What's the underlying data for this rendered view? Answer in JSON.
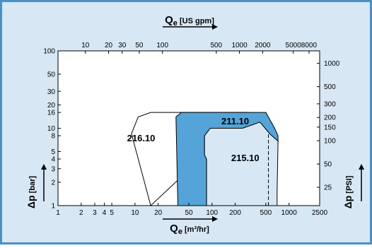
{
  "colors": {
    "panel": "#d7e7f4",
    "panel_border": "#4a90c8",
    "plot_bg": "#ffffff",
    "region_211": "#55a4d9",
    "region_215": "#d7e7f4",
    "stroke": "#000000"
  },
  "labels": {
    "top_axis_title_q": "Q",
    "top_axis_title_sub": "e",
    "top_axis_title_unit": " [US gpm]",
    "bottom_axis_title_q": "Q",
    "bottom_axis_title_sub": "e",
    "bottom_axis_title_unit": " [m³/hr]",
    "left_axis_title_sym": "Δp",
    "left_axis_title_unit": " [bar]",
    "right_axis_title_sym": "Δp",
    "right_axis_title_unit": " [PSI]"
  },
  "chart_data": {
    "type": "area",
    "x_scale": "log",
    "y_scale": "log",
    "xlim": [
      1,
      2500
    ],
    "ylim": [
      1,
      100
    ],
    "x_ticks": [
      {
        "v": 1,
        "label": "1"
      },
      {
        "v": 2,
        "label": "2"
      },
      {
        "v": 3,
        "label": "3"
      },
      {
        "v": 4,
        "label": "4"
      },
      {
        "v": 5,
        "label": "5"
      },
      {
        "v": 10,
        "label": "10"
      },
      {
        "v": 20,
        "label": "20"
      },
      {
        "v": 50,
        "label": "50"
      },
      {
        "v": 100,
        "label": "100"
      },
      {
        "v": 200,
        "label": "200"
      },
      {
        "v": 500,
        "label": "500"
      },
      {
        "v": 1000,
        "label": "1000"
      },
      {
        "v": 2500,
        "label": "2500"
      }
    ],
    "y_ticks": [
      {
        "v": 1,
        "label": "1"
      },
      {
        "v": 2,
        "label": "2"
      },
      {
        "v": 3,
        "label": "3"
      },
      {
        "v": 4,
        "label": "4"
      },
      {
        "v": 5,
        "label": "5"
      },
      {
        "v": 8,
        "label": "8"
      },
      {
        "v": 10,
        "label": "10"
      },
      {
        "v": 16,
        "label": "16"
      },
      {
        "v": 20,
        "label": "20"
      },
      {
        "v": 30,
        "label": "30"
      },
      {
        "v": 50,
        "label": "50"
      },
      {
        "v": 100,
        "label": "100"
      }
    ],
    "top_ticks": [
      {
        "v": 10,
        "label": "10"
      },
      {
        "v": 20,
        "label": "20"
      },
      {
        "v": 30,
        "label": "30"
      },
      {
        "v": 50,
        "label": "50"
      },
      {
        "v": 100,
        "label": "100"
      },
      {
        "v": 500,
        "label": "500"
      },
      {
        "v": 1000,
        "label": "1000"
      },
      {
        "v": 2000,
        "label": "2000"
      },
      {
        "v": 5000,
        "label": "5000"
      },
      {
        "v": 8000,
        "label": "8000"
      }
    ],
    "right_ticks": [
      {
        "v": 25,
        "label": "25"
      },
      {
        "v": 50,
        "label": "50"
      },
      {
        "v": 100,
        "label": "100"
      },
      {
        "v": 150,
        "label": "150"
      },
      {
        "v": 200,
        "label": "200"
      },
      {
        "v": 300,
        "label": "300"
      },
      {
        "v": 500,
        "label": "500"
      },
      {
        "v": 1000,
        "label": "1000"
      }
    ],
    "regions": [
      {
        "name": "216.10",
        "label_at": [
          12,
          7.5
        ],
        "points": [
          [
            16,
            1
          ],
          [
            9,
            8.5
          ],
          [
            11,
            14
          ],
          [
            16,
            16
          ],
          [
            300,
            16
          ],
          [
            270,
            14
          ]
        ]
      },
      {
        "name": "211.10",
        "label_at": [
          200,
          12.5
        ],
        "points": [
          [
            36,
            1
          ],
          [
            34,
            14
          ],
          [
            40,
            16
          ],
          [
            500,
            16
          ],
          [
            650,
            10
          ],
          [
            720,
            8
          ],
          [
            720,
            6.8
          ],
          [
            560,
            8.5
          ],
          [
            420,
            12
          ],
          [
            250,
            10
          ],
          [
            95,
            10
          ],
          [
            80,
            8
          ],
          [
            80,
            4.5
          ],
          [
            85,
            4
          ],
          [
            85,
            1
          ]
        ]
      },
      {
        "name": "215.10",
        "label_at": [
          270,
          4.2
        ],
        "points": [
          [
            85,
            1
          ],
          [
            85,
            4
          ],
          [
            80,
            4.5
          ],
          [
            80,
            8
          ],
          [
            95,
            10
          ],
          [
            250,
            10
          ],
          [
            420,
            12
          ],
          [
            560,
            8.5
          ],
          [
            720,
            6.8
          ],
          [
            700,
            1.5
          ],
          [
            700,
            1
          ]
        ]
      }
    ],
    "dashed_line": {
      "x": 540,
      "y_from": 1,
      "y_to": 8.5
    }
  }
}
